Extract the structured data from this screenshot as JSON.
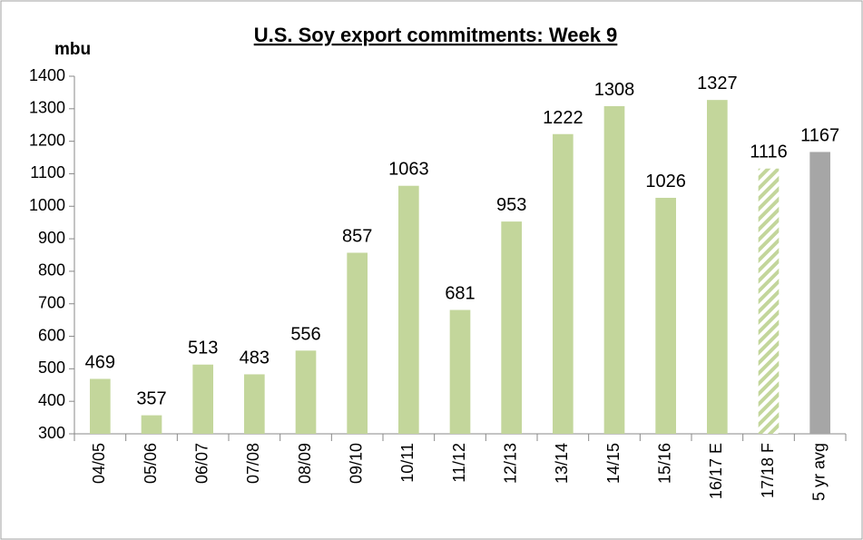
{
  "chart_data": {
    "type": "bar",
    "title": "U.S. Soy export commitments: Week 9",
    "y_axis_label": "mbu",
    "categories": [
      "04/05",
      "05/06",
      "06/07",
      "07/08",
      "08/09",
      "09/10",
      "10/11",
      "11/12",
      "12/13",
      "13/14",
      "14/15",
      "15/16",
      "16/17 E",
      "17/18 F",
      "5 yr avg"
    ],
    "values": [
      469,
      357,
      513,
      483,
      556,
      857,
      1063,
      681,
      953,
      1222,
      1308,
      1026,
      1327,
      1116,
      1167
    ],
    "colors": [
      "#c3d69b",
      "#c3d69b",
      "#c3d69b",
      "#c3d69b",
      "#c3d69b",
      "#c3d69b",
      "#c3d69b",
      "#c3d69b",
      "#c3d69b",
      "#c3d69b",
      "#c3d69b",
      "#c3d69b",
      "#c3d69b",
      "#c3d69b",
      "#a6a6a6"
    ],
    "bar_styles": [
      "solid",
      "solid",
      "solid",
      "solid",
      "solid",
      "solid",
      "solid",
      "solid",
      "solid",
      "solid",
      "solid",
      "solid",
      "solid",
      "hatched",
      "solid"
    ],
    "ylim": [
      300,
      1400
    ],
    "yticks": [
      300,
      400,
      500,
      600,
      700,
      800,
      900,
      1000,
      1100,
      1200,
      1300,
      1400
    ],
    "grid": false
  }
}
